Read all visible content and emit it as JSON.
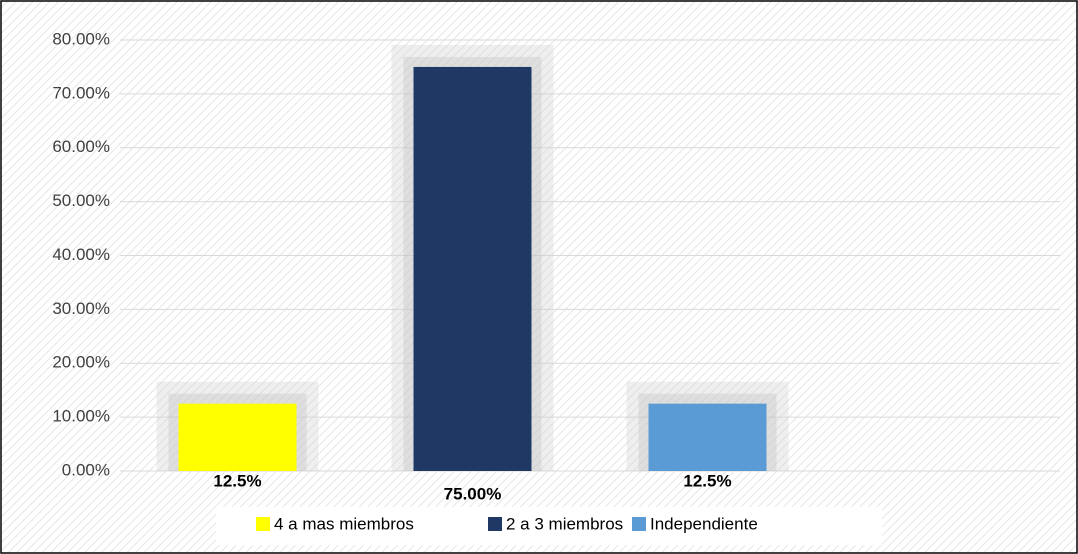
{
  "chart_data": {
    "type": "bar",
    "categories": [
      null,
      null,
      null,
      null
    ],
    "series": [
      {
        "name": "4 a mas miembros",
        "color": "#ffff00",
        "values": [
          12.5,
          null,
          null,
          null
        ],
        "value_labels": [
          "12.5%",
          null,
          null,
          null
        ]
      },
      {
        "name": "2 a 3 miembros",
        "color": "#1f3864",
        "values": [
          null,
          75,
          null,
          null
        ],
        "value_labels": [
          null,
          "75.00%",
          null,
          null
        ]
      },
      {
        "name": "Independiente",
        "color": "#5b9bd5",
        "values": [
          null,
          null,
          12.5,
          null
        ],
        "value_labels": [
          null,
          null,
          "12.5%",
          null
        ]
      }
    ],
    "ylim": [
      0,
      80
    ],
    "yticks": [
      {
        "value": 0,
        "label": "0.00%"
      },
      {
        "value": 10,
        "label": "10.00%"
      },
      {
        "value": 20,
        "label": "20.00%"
      },
      {
        "value": 30,
        "label": "30.00%"
      },
      {
        "value": 40,
        "label": "40.00%"
      },
      {
        "value": 50,
        "label": "50.00%"
      },
      {
        "value": 60,
        "label": "60.00%"
      },
      {
        "value": 70,
        "label": "70.00%"
      },
      {
        "value": 80,
        "label": "80.00%"
      }
    ],
    "grid": true,
    "legend": "bottom"
  }
}
